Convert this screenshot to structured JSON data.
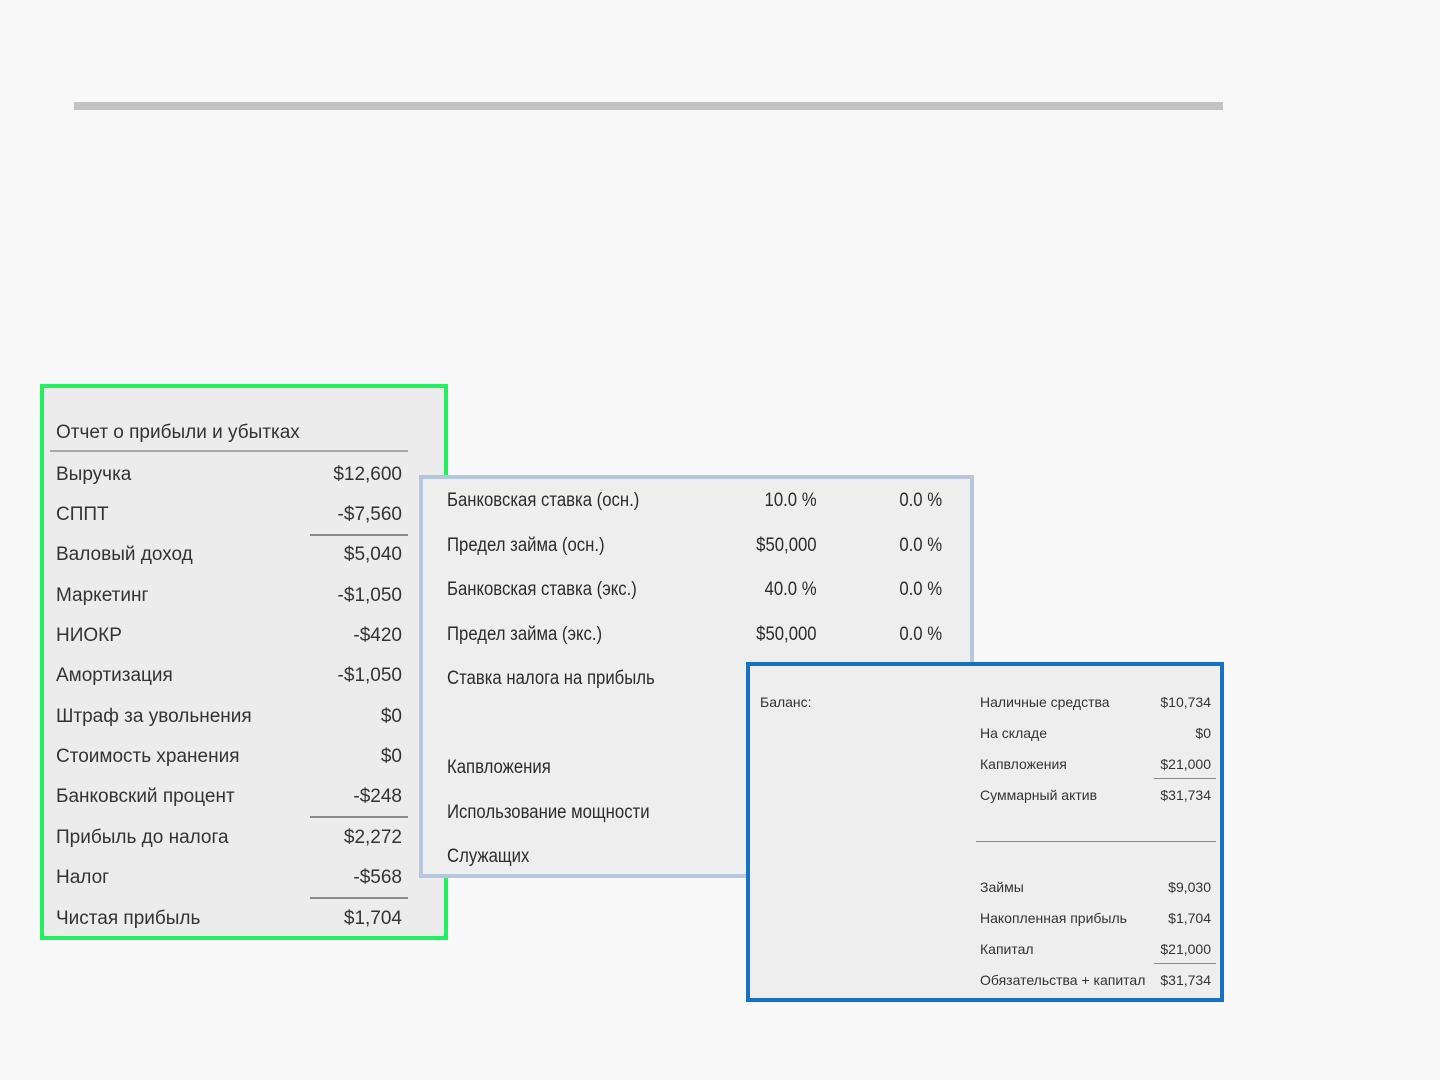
{
  "income_statement": {
    "title": "Отчет о прибыли и убытках",
    "rows": [
      {
        "label": "Выручка",
        "value": "$12,600"
      },
      {
        "label": "СППТ",
        "value": "-$7,560"
      },
      {
        "label": "Валовый доход",
        "value": "$5,040"
      },
      {
        "label": "Маркетинг",
        "value": "-$1,050"
      },
      {
        "label": "НИОКР",
        "value": "-$420"
      },
      {
        "label": "Амортизация",
        "value": "-$1,050"
      },
      {
        "label": "Штраф за увольнения",
        "value": "$0"
      },
      {
        "label": "Стоимость хранения",
        "value": "$0"
      },
      {
        "label": "Банковский процент",
        "value": "-$248"
      },
      {
        "label": "Прибыль до налога",
        "value": "$2,272"
      },
      {
        "label": "Налог",
        "value": "-$568"
      },
      {
        "label": "Чистая прибыль",
        "value": "$1,704"
      }
    ]
  },
  "bank_panel": {
    "rows": [
      {
        "label": "Банковская ставка (осн.)",
        "value": "10.0 %",
        "value2": "0.0 %"
      },
      {
        "label": "Предел займа (осн.)",
        "value": "$50,000",
        "value2": "0.0 %"
      },
      {
        "label": "Банковская ставка (экс.)",
        "value": "40.0 %",
        "value2": "0.0 %"
      },
      {
        "label": "Предел займа (экс.)",
        "value": "$50,000",
        "value2": "0.0 %"
      },
      {
        "label": "Ставка налога на прибыль",
        "value": "",
        "value2": ""
      },
      {
        "label": "Капвложения",
        "value": "",
        "value2": ""
      },
      {
        "label": "Использование мощности",
        "value": "",
        "value2": ""
      },
      {
        "label": "Служащих",
        "value": "",
        "value2": ""
      }
    ]
  },
  "balance_sheet": {
    "title": "Баланс:",
    "assets": [
      {
        "label": "Наличные средства",
        "value": "$10,734"
      },
      {
        "label": "На складе",
        "value": "$0"
      },
      {
        "label": "Капвложения",
        "value": "$21,000"
      },
      {
        "label": "Суммарный актив",
        "value": "$31,734"
      }
    ],
    "liabilities": [
      {
        "label": "Займы",
        "value": "$9,030"
      },
      {
        "label": "Накопленная прибыль",
        "value": "$1,704"
      },
      {
        "label": "Капитал",
        "value": "$21,000"
      },
      {
        "label": "Обязательства + капитал",
        "value": "$31,734"
      }
    ]
  },
  "colors": {
    "income_border": "#22f060",
    "bank_border": "#b6c6dc",
    "balance_border": "#1570c6",
    "panel_bg": "#ececec",
    "page_bg": "#f8f8f8"
  }
}
